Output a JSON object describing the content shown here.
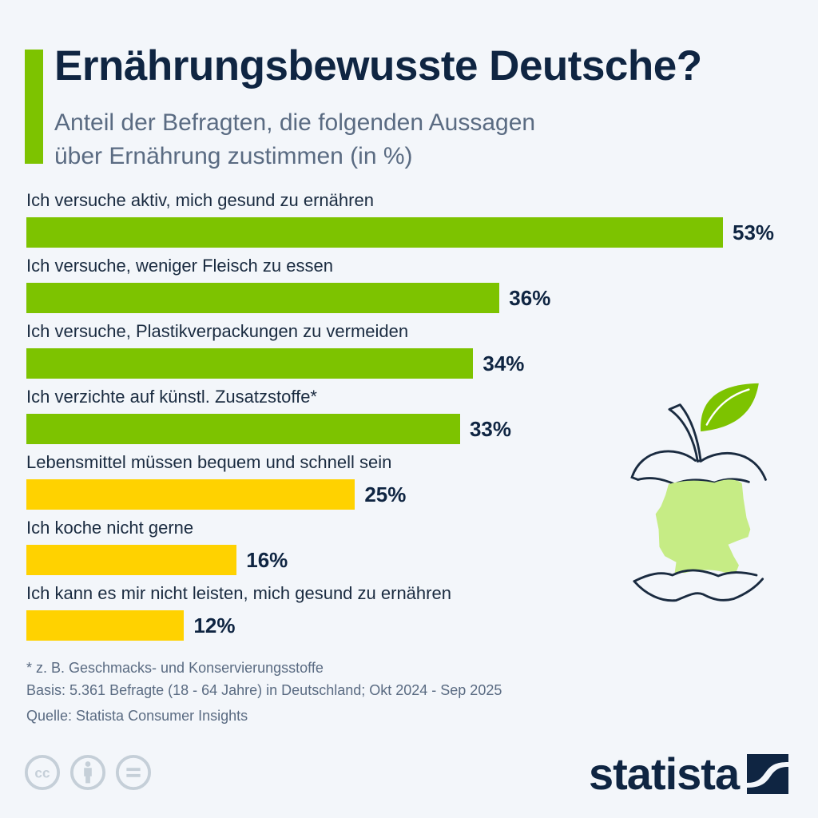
{
  "header": {
    "title": "Ernährungsbewusste Deutsche?",
    "subtitle_line1": "Anteil der Befragten, die folgenden Aussagen",
    "subtitle_line2": "über Ernährung zustimmen (in %)"
  },
  "colors": {
    "green": "#7dc300",
    "yellow": "#ffd200",
    "navy": "#0f2542",
    "map_green": "#c6ec85"
  },
  "chart_data": {
    "type": "bar",
    "orientation": "horizontal",
    "title": "Ernährungsbewusste Deutsche?",
    "subtitle": "Anteil der Befragten, die folgenden Aussagen über Ernährung zustimmen (in %)",
    "xlabel": "",
    "ylabel": "",
    "unit": "%",
    "xlim": [
      0,
      53
    ],
    "grid": false,
    "legend": "none",
    "categories": [
      "Ich versuche aktiv, mich gesund zu ernähren",
      "Ich versuche, weniger Fleisch zu essen",
      "Ich versuche, Plastikverpackungen zu vermeiden",
      "Ich verzichte auf künstl. Zusatzstoffe*",
      "Lebensmittel müssen bequem und schnell sein",
      "Ich koche nicht gerne",
      "Ich kann es mir nicht leisten, mich gesund zu ernähren"
    ],
    "values": [
      53,
      36,
      34,
      33,
      25,
      16,
      12
    ],
    "value_labels": [
      "53%",
      "36%",
      "34%",
      "33%",
      "25%",
      "16%",
      "12%"
    ],
    "bar_colors": [
      "green",
      "green",
      "green",
      "green",
      "yellow",
      "yellow",
      "yellow"
    ]
  },
  "footer": {
    "footnote": "* z. B.  Geschmacks- und Konservierungsstoffe",
    "basis": "Basis: 5.361 Befragte (18 - 64 Jahre) in Deutschland; Okt 2024 - Sep 2025",
    "source": "Quelle: Statista Consumer Insights",
    "license_icons": [
      "cc-icon",
      "attribution-icon",
      "no-derivatives-icon"
    ],
    "logo_text": "statista"
  }
}
